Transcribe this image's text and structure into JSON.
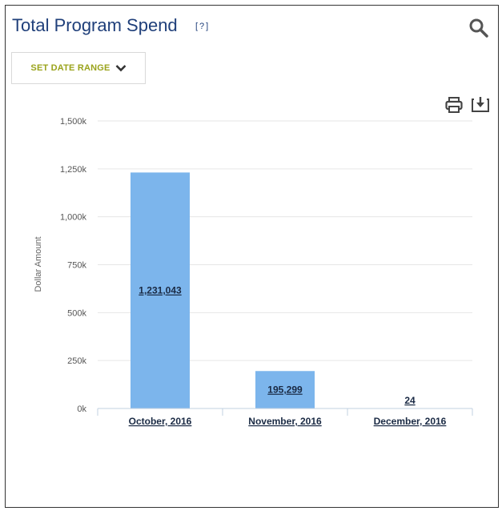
{
  "widget": {
    "title": "Total Program Spend",
    "help_label": "[?]",
    "date_range_label": "SET DATE RANGE",
    "icons": {
      "search": "search-icon",
      "chevron": "chevron-down-icon",
      "print": "print-icon",
      "download": "download-icon"
    }
  },
  "colors": {
    "title": "#1f3f7a",
    "date_button_text": "#9aa31b",
    "bar": "#7cb5ec",
    "grid": "#e6e6e6"
  },
  "chart_data": {
    "type": "bar",
    "categories": [
      "October, 2016",
      "November, 2016",
      "December, 2016"
    ],
    "values": [
      1231043,
      195299,
      24
    ],
    "data_labels": [
      "1,231,043",
      "195,299",
      "24"
    ],
    "title": "",
    "xlabel": "",
    "ylabel": "Dollar Amount",
    "ylim": [
      0,
      1500000
    ],
    "yticks": [
      0,
      250000,
      500000,
      750000,
      1000000,
      1250000,
      1500000
    ],
    "ytick_labels": [
      "0k",
      "250k",
      "500k",
      "750k",
      "1,000k",
      "1,250k",
      "1,500k"
    ],
    "grid": true,
    "legend": "none"
  }
}
